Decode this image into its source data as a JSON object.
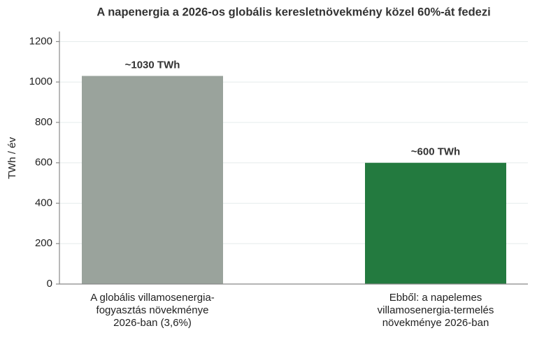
{
  "chart_data": {
    "type": "bar",
    "title": "A napenergia a 2026-os globális keresletnövekmény közel 60%-át fedezi",
    "y_label": "TWh / év",
    "categories": [
      [
        "A globális villamosenergia-",
        "fogyasztás növekménye",
        "2026-ban (3,6%)"
      ],
      [
        "Ebből: a napelemes",
        "villamosenergia-termelés",
        "növekménye 2026-ban"
      ]
    ],
    "values": [
      1030,
      600
    ],
    "value_labels": [
      "~1030 TWh",
      "~600 TWh"
    ],
    "colors": [
      "#9aa39c",
      "#237a3f"
    ],
    "ylim": [
      0,
      1250
    ],
    "yticks": [
      0,
      200,
      400,
      600,
      800,
      1000,
      1200
    ],
    "grid": true
  }
}
